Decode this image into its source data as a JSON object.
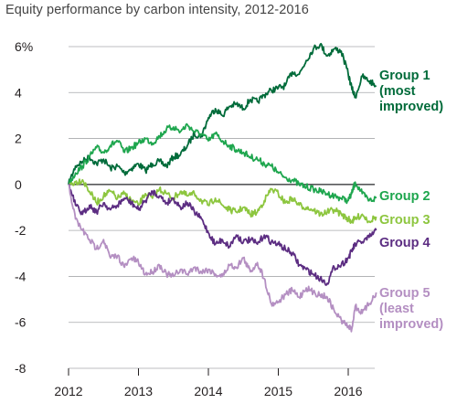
{
  "title": "Equity performance by carbon intensity, 2012-2016",
  "colors": {
    "grid": "#a7a9ac",
    "zero_line": "#58595b",
    "group1": "#006b3a",
    "group2": "#1ea64e",
    "group3": "#8dc63f",
    "group4": "#5c2d82",
    "group5": "#b48fc2"
  },
  "chart_data": {
    "type": "line",
    "title": "Equity performance by carbon intensity, 2012-2016",
    "xlabel": "",
    "ylabel": "",
    "ylim": [
      -8,
      6
    ],
    "xlim": [
      2012,
      2016.45
    ],
    "yticks": [
      "6%",
      "4",
      "2",
      "0",
      "-2",
      "-4",
      "-6",
      "-8"
    ],
    "ytick_values": [
      6,
      4,
      2,
      0,
      -2,
      -4,
      -6,
      -8
    ],
    "xticks": [
      "2012",
      "2013",
      "2014",
      "2015",
      "2016"
    ],
    "xtick_values": [
      2012,
      2013,
      2014,
      2015,
      2016
    ],
    "grid": "horizontal",
    "series": [
      {
        "name": "Group 1 (most improved)",
        "label_lines": [
          "Group 1",
          "(most",
          "improved)"
        ],
        "color_key": "group1",
        "x": [
          2012.0,
          2012.1,
          2012.2,
          2012.3,
          2012.4,
          2012.5,
          2012.6,
          2012.7,
          2012.8,
          2012.9,
          2013.0,
          2013.1,
          2013.2,
          2013.3,
          2013.4,
          2013.5,
          2013.6,
          2013.7,
          2013.8,
          2013.9,
          2014.0,
          2014.1,
          2014.2,
          2014.3,
          2014.4,
          2014.5,
          2014.6,
          2014.7,
          2014.8,
          2014.9,
          2015.0,
          2015.1,
          2015.2,
          2015.3,
          2015.4,
          2015.5,
          2015.6,
          2015.7,
          2015.8,
          2015.9,
          2016.0,
          2016.05,
          2016.1,
          2016.2,
          2016.3,
          2016.4
        ],
        "values": [
          0.0,
          0.8,
          1.0,
          1.2,
          0.9,
          1.1,
          0.7,
          0.8,
          0.5,
          0.7,
          0.9,
          0.6,
          0.9,
          1.0,
          0.8,
          1.2,
          1.3,
          1.7,
          2.2,
          2.1,
          2.9,
          3.3,
          3.0,
          3.4,
          3.5,
          3.3,
          3.7,
          3.6,
          3.9,
          4.1,
          4.2,
          4.3,
          4.9,
          4.8,
          5.4,
          5.9,
          6.1,
          5.6,
          5.9,
          5.8,
          4.8,
          4.2,
          3.8,
          4.7,
          4.5,
          4.3
        ]
      },
      {
        "name": "Group 2",
        "label_lines": [
          "Group 2"
        ],
        "color_key": "group2",
        "x": [
          2012.0,
          2012.1,
          2012.2,
          2012.3,
          2012.4,
          2012.5,
          2012.6,
          2012.7,
          2012.8,
          2012.9,
          2013.0,
          2013.1,
          2013.2,
          2013.3,
          2013.4,
          2013.5,
          2013.6,
          2013.7,
          2013.8,
          2013.9,
          2014.0,
          2014.1,
          2014.2,
          2014.3,
          2014.4,
          2014.5,
          2014.6,
          2014.7,
          2014.8,
          2014.9,
          2015.0,
          2015.1,
          2015.2,
          2015.3,
          2015.4,
          2015.5,
          2015.6,
          2015.7,
          2015.8,
          2015.9,
          2016.0,
          2016.05,
          2016.1,
          2016.2,
          2016.3,
          2016.4
        ],
        "values": [
          0.0,
          0.5,
          0.8,
          1.2,
          1.6,
          1.4,
          1.7,
          1.9,
          1.4,
          1.6,
          1.8,
          2.0,
          1.8,
          2.1,
          2.4,
          2.5,
          2.3,
          2.6,
          2.3,
          2.2,
          1.9,
          2.2,
          1.9,
          1.7,
          1.5,
          1.4,
          1.2,
          1.1,
          0.9,
          0.8,
          0.5,
          0.3,
          0.2,
          0.0,
          -0.1,
          -0.2,
          -0.3,
          -0.4,
          -0.5,
          -0.6,
          -0.7,
          -0.4,
          0.1,
          -0.4,
          -0.7,
          -0.6
        ]
      },
      {
        "name": "Group 3",
        "label_lines": [
          "Group 3"
        ],
        "color_key": "group3",
        "x": [
          2012.0,
          2012.1,
          2012.2,
          2012.3,
          2012.4,
          2012.5,
          2012.6,
          2012.7,
          2012.8,
          2012.9,
          2013.0,
          2013.1,
          2013.2,
          2013.3,
          2013.4,
          2013.5,
          2013.6,
          2013.7,
          2013.8,
          2013.9,
          2014.0,
          2014.1,
          2014.2,
          2014.3,
          2014.4,
          2014.5,
          2014.6,
          2014.7,
          2014.8,
          2014.9,
          2015.0,
          2015.1,
          2015.2,
          2015.3,
          2015.4,
          2015.5,
          2015.6,
          2015.7,
          2015.8,
          2015.9,
          2016.0,
          2016.05,
          2016.1,
          2016.2,
          2016.3,
          2016.4
        ],
        "values": [
          0.0,
          0.1,
          0.2,
          -0.3,
          -0.8,
          -0.5,
          -0.3,
          -0.6,
          -0.4,
          -0.7,
          -0.9,
          -0.4,
          -0.6,
          -0.2,
          -0.4,
          -0.6,
          -0.3,
          -0.5,
          -0.4,
          -0.7,
          -0.9,
          -0.6,
          -0.9,
          -1.1,
          -1.2,
          -1.0,
          -1.3,
          -1.2,
          -0.7,
          -0.2,
          -0.4,
          -0.8,
          -0.6,
          -0.9,
          -1.0,
          -1.1,
          -1.3,
          -1.2,
          -1.1,
          -1.3,
          -1.5,
          -1.6,
          -1.5,
          -1.3,
          -1.6,
          -1.4
        ]
      },
      {
        "name": "Group 4",
        "label_lines": [
          "Group 4"
        ],
        "color_key": "group4",
        "x": [
          2012.0,
          2012.1,
          2012.2,
          2012.3,
          2012.4,
          2012.5,
          2012.6,
          2012.7,
          2012.8,
          2012.9,
          2013.0,
          2013.1,
          2013.2,
          2013.3,
          2013.4,
          2013.5,
          2013.6,
          2013.7,
          2013.8,
          2013.9,
          2014.0,
          2014.1,
          2014.2,
          2014.3,
          2014.4,
          2014.5,
          2014.6,
          2014.7,
          2014.8,
          2014.9,
          2015.0,
          2015.1,
          2015.2,
          2015.3,
          2015.4,
          2015.5,
          2015.6,
          2015.7,
          2015.8,
          2015.9,
          2016.0,
          2016.05,
          2016.1,
          2016.2,
          2016.3,
          2016.4
        ],
        "values": [
          0.0,
          -0.9,
          -1.3,
          -0.9,
          -1.2,
          -0.8,
          -1.1,
          -0.9,
          -0.6,
          -0.8,
          -1.1,
          -0.7,
          -0.3,
          -0.5,
          -0.8,
          -0.6,
          -1.0,
          -0.8,
          -1.2,
          -1.5,
          -2.1,
          -2.6,
          -2.4,
          -2.7,
          -2.2,
          -2.5,
          -2.4,
          -2.6,
          -2.2,
          -2.5,
          -2.6,
          -2.8,
          -3.0,
          -3.5,
          -3.7,
          -3.9,
          -4.1,
          -4.3,
          -3.6,
          -3.5,
          -3.2,
          -2.9,
          -2.6,
          -2.5,
          -2.3,
          -2.0
        ]
      },
      {
        "name": "Group 5 (least improved)",
        "label_lines": [
          "Group 5",
          "(least",
          "improved)"
        ],
        "color_key": "group5",
        "x": [
          2012.0,
          2012.1,
          2012.2,
          2012.3,
          2012.4,
          2012.5,
          2012.6,
          2012.7,
          2012.8,
          2012.9,
          2013.0,
          2013.1,
          2013.2,
          2013.3,
          2013.4,
          2013.5,
          2013.6,
          2013.7,
          2013.8,
          2013.9,
          2014.0,
          2014.1,
          2014.2,
          2014.3,
          2014.4,
          2014.5,
          2014.6,
          2014.7,
          2014.8,
          2014.9,
          2015.0,
          2015.1,
          2015.2,
          2015.3,
          2015.4,
          2015.5,
          2015.6,
          2015.7,
          2015.8,
          2015.9,
          2016.0,
          2016.05,
          2016.1,
          2016.2,
          2016.3,
          2016.4
        ],
        "values": [
          0.0,
          -1.5,
          -2.0,
          -2.4,
          -2.8,
          -2.4,
          -3.2,
          -3.1,
          -3.6,
          -3.2,
          -3.4,
          -3.9,
          -3.8,
          -3.5,
          -3.9,
          -4.0,
          -3.7,
          -3.9,
          -3.6,
          -3.8,
          -3.7,
          -3.9,
          -4.0,
          -3.5,
          -3.6,
          -3.2,
          -3.8,
          -3.4,
          -4.1,
          -5.2,
          -5.1,
          -4.8,
          -4.6,
          -4.9,
          -4.5,
          -4.7,
          -4.8,
          -4.9,
          -5.5,
          -5.9,
          -6.2,
          -6.3,
          -5.3,
          -5.6,
          -5.2,
          -4.7
        ]
      }
    ]
  }
}
